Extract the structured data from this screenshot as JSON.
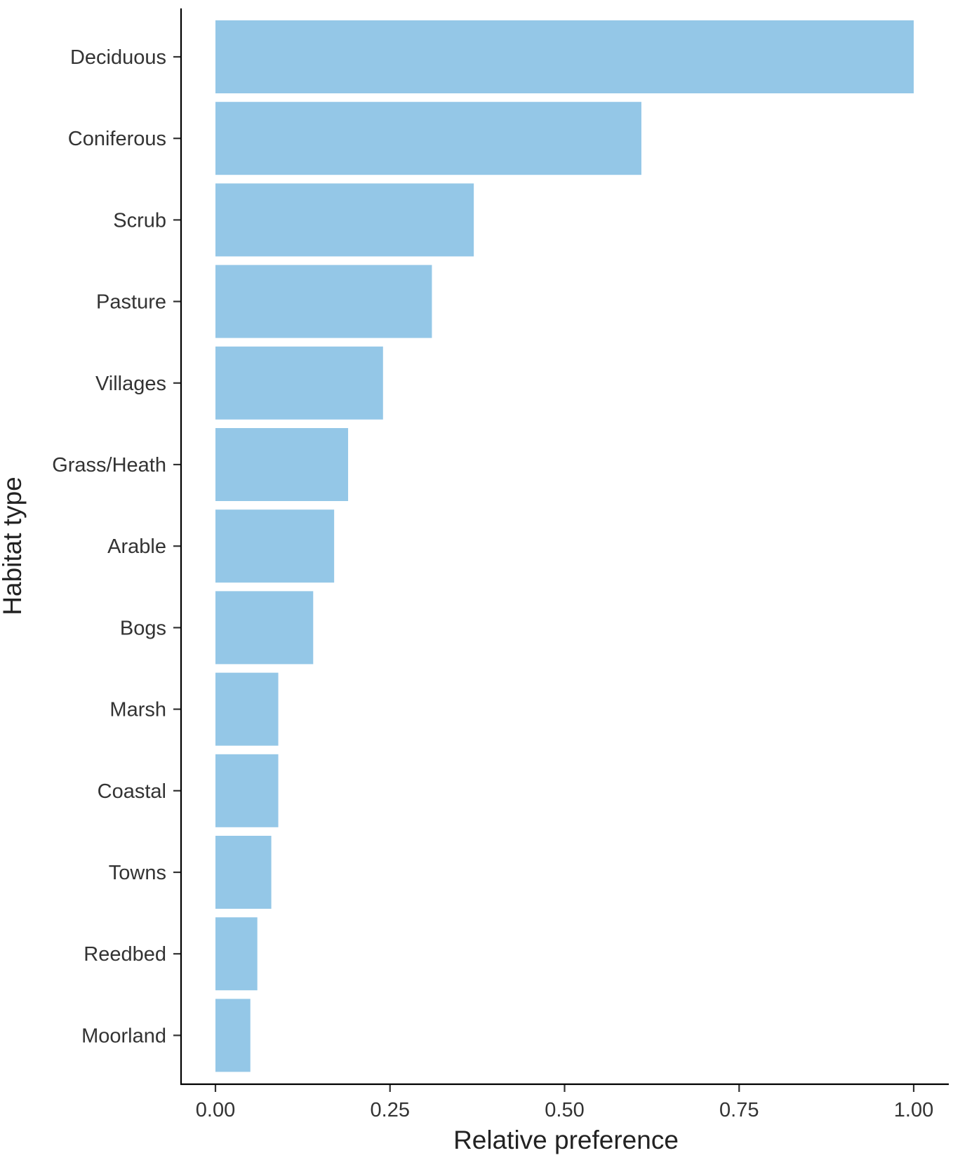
{
  "chart_data": {
    "type": "bar",
    "orientation": "horizontal",
    "categories": [
      "Deciduous",
      "Coniferous",
      "Scrub",
      "Pasture",
      "Villages",
      "Grass/Heath",
      "Arable",
      "Bogs",
      "Marsh",
      "Coastal",
      "Towns",
      "Reedbed",
      "Moorland"
    ],
    "values": [
      1.0,
      0.61,
      0.37,
      0.31,
      0.24,
      0.19,
      0.17,
      0.14,
      0.09,
      0.09,
      0.08,
      0.06,
      0.05
    ],
    "xlabel": "Relative preference",
    "ylabel": "Habitat type",
    "xlim": [
      -0.05,
      1.05
    ],
    "xticks": [
      0.0,
      0.25,
      0.5,
      0.75,
      1.0
    ],
    "xtick_labels": [
      "0.00",
      "0.25",
      "0.50",
      "0.75",
      "1.00"
    ],
    "grid": false,
    "bar_color": "#94c7e7"
  }
}
